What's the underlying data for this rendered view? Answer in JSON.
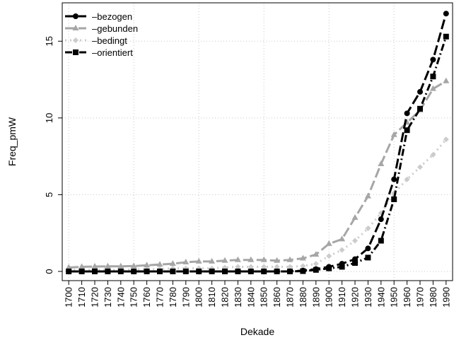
{
  "chart_data": {
    "type": "line",
    "title": "",
    "xlabel": "Dekade",
    "ylabel": "Freq_pmW",
    "x": [
      1700,
      1710,
      1720,
      1730,
      1740,
      1750,
      1760,
      1770,
      1780,
      1790,
      1800,
      1810,
      1820,
      1830,
      1840,
      1850,
      1860,
      1870,
      1880,
      1890,
      1900,
      1910,
      1920,
      1930,
      1940,
      1950,
      1960,
      1970,
      1980,
      1990
    ],
    "x_tick_labels": [
      "1700",
      "1710",
      "1720",
      "1730",
      "1740",
      "1750",
      "1760",
      "1770",
      "1780",
      "1790",
      "1800",
      "1810",
      "1820",
      "1830",
      "1840",
      "1850",
      "1860",
      "1870",
      "1880",
      "1890",
      "1900",
      "1910",
      "1920",
      "1930",
      "1940",
      "1950",
      "1960",
      "1970",
      "1980",
      "1990"
    ],
    "y_ticks": [
      0,
      5,
      10,
      15
    ],
    "y_tick_labels": [
      "0",
      "5",
      "10",
      "15"
    ],
    "ylim": [
      0,
      17
    ],
    "grid": true,
    "legend_position": "top-left",
    "series": [
      {
        "name": "–bezogen",
        "color": "#000000",
        "marker": "circle",
        "dash": "long-dash",
        "values": [
          0,
          0,
          0,
          0,
          0,
          0,
          0,
          0,
          0,
          0,
          0,
          0,
          0,
          0,
          0,
          0,
          0,
          0,
          0.05,
          0.15,
          0.3,
          0.5,
          0.8,
          1.5,
          3.4,
          6.0,
          10.3,
          11.7,
          13.8,
          16.8
        ]
      },
      {
        "name": "–gebunden",
        "color": "#a6a6a6",
        "marker": "triangle",
        "dash": "long-dash",
        "values": [
          0.25,
          0.3,
          0.32,
          0.33,
          0.33,
          0.35,
          0.4,
          0.45,
          0.5,
          0.6,
          0.65,
          0.65,
          0.7,
          0.75,
          0.75,
          0.75,
          0.7,
          0.75,
          0.85,
          1.1,
          1.8,
          2.1,
          3.5,
          4.9,
          7.0,
          8.9,
          9.7,
          10.5,
          11.9,
          12.4
        ]
      },
      {
        "name": "–bedingt",
        "color": "#cccccc",
        "marker": "diamond",
        "dash": "dot",
        "values": [
          0.1,
          0.1,
          0.1,
          0.1,
          0.1,
          0.12,
          0.15,
          0.15,
          0.2,
          0.2,
          0.2,
          0.2,
          0.25,
          0.3,
          0.3,
          0.3,
          0.3,
          0.3,
          0.35,
          0.5,
          1.0,
          1.4,
          2.0,
          2.8,
          3.8,
          5.1,
          6.0,
          6.8,
          7.6,
          8.6
        ]
      },
      {
        "name": "–orientiert",
        "color": "#000000",
        "marker": "square",
        "dash": "dash-dot",
        "values": [
          0,
          0,
          0,
          0,
          0,
          0,
          0,
          0,
          0,
          0,
          0,
          0,
          0,
          0,
          0,
          0,
          0,
          0,
          0.02,
          0.1,
          0.2,
          0.3,
          0.55,
          0.9,
          2.0,
          4.7,
          9.2,
          10.6,
          12.7,
          15.3
        ]
      }
    ]
  }
}
